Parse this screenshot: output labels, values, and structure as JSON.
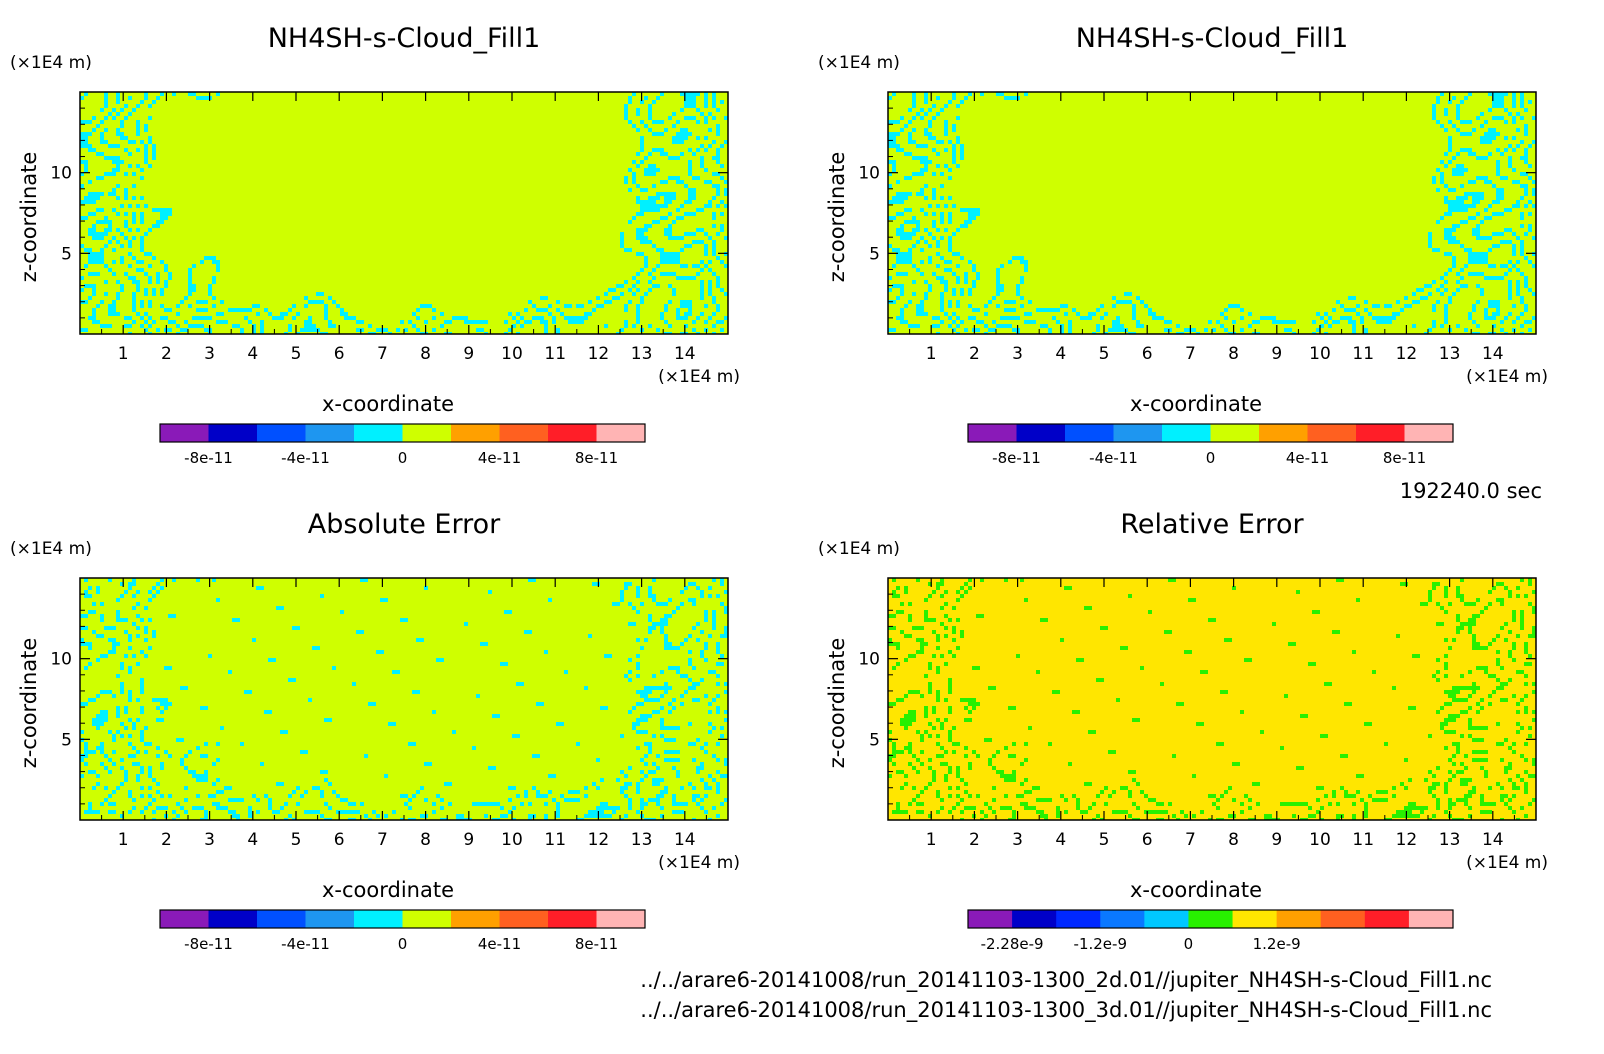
{
  "time_label": "192240.0 sec",
  "footer": {
    "file1": "../../arare6-20141008/run_20141103-1300_2d.01//jupiter_NH4SH-s-Cloud_Fill1.nc",
    "file2": "../../arare6-20141008/run_20141103-1300_3d.01//jupiter_NH4SH-s-Cloud_Fill1.nc"
  },
  "chart_data": [
    {
      "type": "heatmap",
      "title": "NH4SH-s-Cloud_Fill1",
      "xlabel": "x-coordinate",
      "ylabel": "z-coordinate",
      "x_unit": "(×1E4 m)",
      "y_unit": "(×1E4 m)",
      "xlim": [
        0,
        15
      ],
      "ylim": [
        0,
        15
      ],
      "x_ticks": [
        1,
        2,
        3,
        4,
        5,
        6,
        7,
        8,
        9,
        10,
        11,
        12,
        13,
        14
      ],
      "y_ticks": [
        5,
        10
      ],
      "field": "cloud_bands",
      "colorbar": {
        "colors": [
          "#8a1ab8",
          "#0000c8",
          "#0050ff",
          "#1e96f0",
          "#00f0ff",
          "#cfff00",
          "#ffa000",
          "#ff6020",
          "#ff1e28",
          "#ffb4b4"
        ],
        "tick_labels": [
          "-8e-11",
          "-4e-11",
          "0",
          "4e-11",
          "8e-11"
        ]
      },
      "dominant_colors": [
        "#cfff00",
        "#00f0ff"
      ]
    },
    {
      "type": "heatmap",
      "title": "NH4SH-s-Cloud_Fill1",
      "xlabel": "x-coordinate",
      "ylabel": "z-coordinate",
      "x_unit": "(×1E4 m)",
      "y_unit": "(×1E4 m)",
      "xlim": [
        0,
        15
      ],
      "ylim": [
        0,
        15
      ],
      "x_ticks": [
        1,
        2,
        3,
        4,
        5,
        6,
        7,
        8,
        9,
        10,
        11,
        12,
        13,
        14
      ],
      "y_ticks": [
        5,
        10
      ],
      "field": "cloud_bands",
      "colorbar": {
        "colors": [
          "#8a1ab8",
          "#0000c8",
          "#0050ff",
          "#1e96f0",
          "#00f0ff",
          "#cfff00",
          "#ffa000",
          "#ff6020",
          "#ff1e28",
          "#ffb4b4"
        ],
        "tick_labels": [
          "-8e-11",
          "-4e-11",
          "0",
          "4e-11",
          "8e-11"
        ]
      },
      "dominant_colors": [
        "#cfff00",
        "#00f0ff"
      ]
    },
    {
      "type": "heatmap",
      "title": "Absolute Error",
      "xlabel": "x-coordinate",
      "ylabel": "z-coordinate",
      "x_unit": "(×1E4 m)",
      "y_unit": "(×1E4 m)",
      "xlim": [
        0,
        15
      ],
      "ylim": [
        0,
        15
      ],
      "x_ticks": [
        1,
        2,
        3,
        4,
        5,
        6,
        7,
        8,
        9,
        10,
        11,
        12,
        13,
        14
      ],
      "y_ticks": [
        5,
        10
      ],
      "field": "error_bands",
      "colorbar": {
        "colors": [
          "#8a1ab8",
          "#0000c8",
          "#0050ff",
          "#1e96f0",
          "#00f0ff",
          "#cfff00",
          "#ffa000",
          "#ff6020",
          "#ff1e28",
          "#ffb4b4"
        ],
        "tick_labels": [
          "-8e-11",
          "-4e-11",
          "0",
          "4e-11",
          "8e-11"
        ]
      },
      "dominant_colors": [
        "#cfff00",
        "#00f0ff"
      ]
    },
    {
      "type": "heatmap",
      "title": "Relative Error",
      "xlabel": "x-coordinate",
      "ylabel": "z-coordinate",
      "x_unit": "(×1E4 m)",
      "y_unit": "(×1E4 m)",
      "xlim": [
        0,
        15
      ],
      "ylim": [
        0,
        15
      ],
      "x_ticks": [
        1,
        2,
        3,
        4,
        5,
        6,
        7,
        8,
        9,
        10,
        11,
        12,
        13,
        14
      ],
      "y_ticks": [
        5,
        10
      ],
      "field": "error_bands",
      "colorbar": {
        "colors": [
          "#8a1ab8",
          "#0000c8",
          "#0028ff",
          "#0a78ff",
          "#00c8ff",
          "#28f000",
          "#ffe600",
          "#ffa000",
          "#ff6020",
          "#ff1e28",
          "#ffb4b4"
        ],
        "tick_labels": [
          "-2.28e-9",
          "-1.2e-9",
          "0",
          "1.2e-9"
        ]
      },
      "dominant_colors": [
        "#ffe600",
        "#28f000"
      ]
    }
  ]
}
